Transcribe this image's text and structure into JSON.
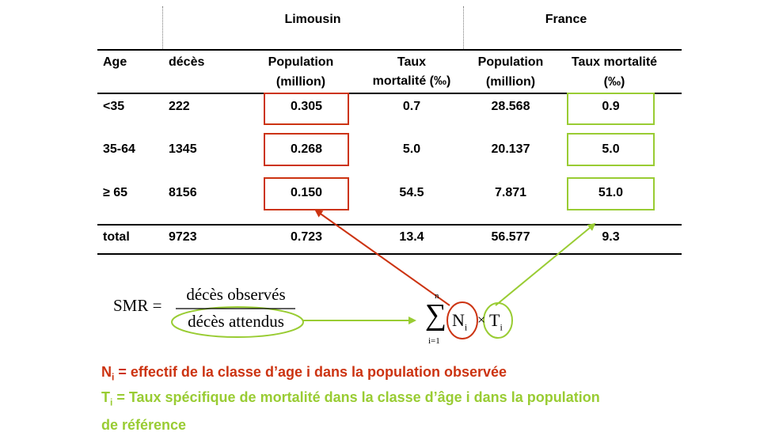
{
  "groups": {
    "limousin": "Limousin",
    "france": "France"
  },
  "headers": {
    "age": "Age",
    "deces": "décès",
    "pop_l_1": "Population",
    "pop_l_2": "(million)",
    "taux_l_1": "Taux",
    "taux_l_2": "mortalité (‰)",
    "pop_f_1": "Population",
    "pop_f_2": "(million)",
    "taux_f_1": "Taux mortalité",
    "taux_f_2": "(‰)"
  },
  "rows": [
    {
      "age": "<35",
      "deces": "222",
      "pop_l": "0.305",
      "taux_l": "0.7",
      "pop_f": "28.568",
      "taux_f": "0.9"
    },
    {
      "age": "35-64",
      "deces": "1345",
      "pop_l": "0.268",
      "taux_l": "5.0",
      "pop_f": "20.137",
      "taux_f": "5.0"
    },
    {
      "age": "≥ 65",
      "deces": "8156",
      "pop_l": "0.150",
      "taux_l": "54.5",
      "pop_f": "7.871",
      "taux_f": "51.0"
    }
  ],
  "total": {
    "age": "total",
    "deces": "9723",
    "pop_l": "0.723",
    "taux_l": "13.4",
    "pop_f": "56.577",
    "taux_f": "9.3"
  },
  "formula": {
    "lhs": "SMR =",
    "numerator": "décès observés",
    "denominator": "décès attendus",
    "sum_top": "n",
    "sum_symbol": "∑",
    "sum_bottom": "i=1",
    "n_var": "N",
    "n_sub": "i",
    "times": "×",
    "t_var": "T",
    "t_sub": "i"
  },
  "legend": {
    "n_symbol": "N",
    "n_sub": "i",
    "n_text": " = effectif de la classe d’age i dans la population observée",
    "t_symbol": "T",
    "t_sub": "i",
    "t_text_1": " = Taux spécifique de mortalité dans la classe d’âge i dans la population",
    "t_text_2": "de référence"
  },
  "colors": {
    "red": "#cc3311",
    "green": "#99cc33"
  }
}
